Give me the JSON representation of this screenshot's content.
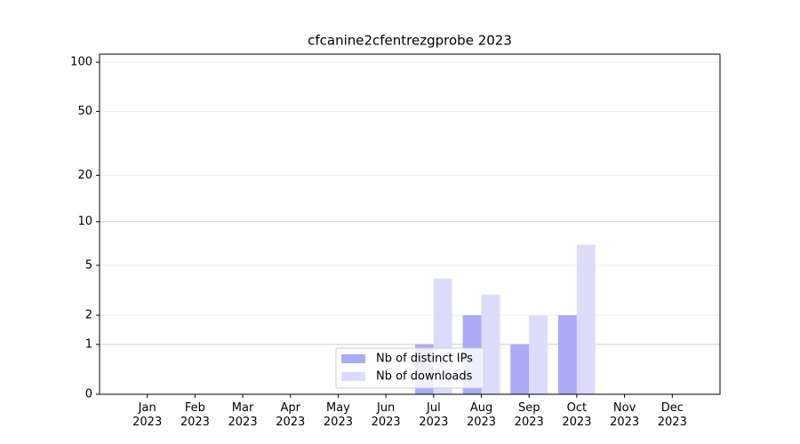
{
  "chart_data": {
    "type": "bar",
    "title": "cfcanine2cfentrezgprobe 2023",
    "categories": [
      "Jan\n2023",
      "Feb\n2023",
      "Mar\n2023",
      "Apr\n2023",
      "May\n2023",
      "Jun\n2023",
      "Jul\n2023",
      "Aug\n2023",
      "Sep\n2023",
      "Oct\n2023",
      "Nov\n2023",
      "Dec\n2023"
    ],
    "series": [
      {
        "name": "Nb of distinct IPs",
        "color": "#aaaaf8",
        "values": [
          0,
          0,
          0,
          0,
          0,
          0,
          1,
          2,
          1,
          2,
          0,
          0
        ]
      },
      {
        "name": "Nb of downloads",
        "color": "#dcdcfa",
        "values": [
          0,
          0,
          0,
          0,
          0,
          0,
          4,
          3,
          2,
          7,
          0,
          0
        ]
      }
    ],
    "yscale": "log1p",
    "ylim": [
      0,
      112
    ],
    "yticks": [
      0,
      1,
      2,
      5,
      10,
      20,
      50,
      100
    ],
    "grid": true,
    "legend": "lower center"
  }
}
